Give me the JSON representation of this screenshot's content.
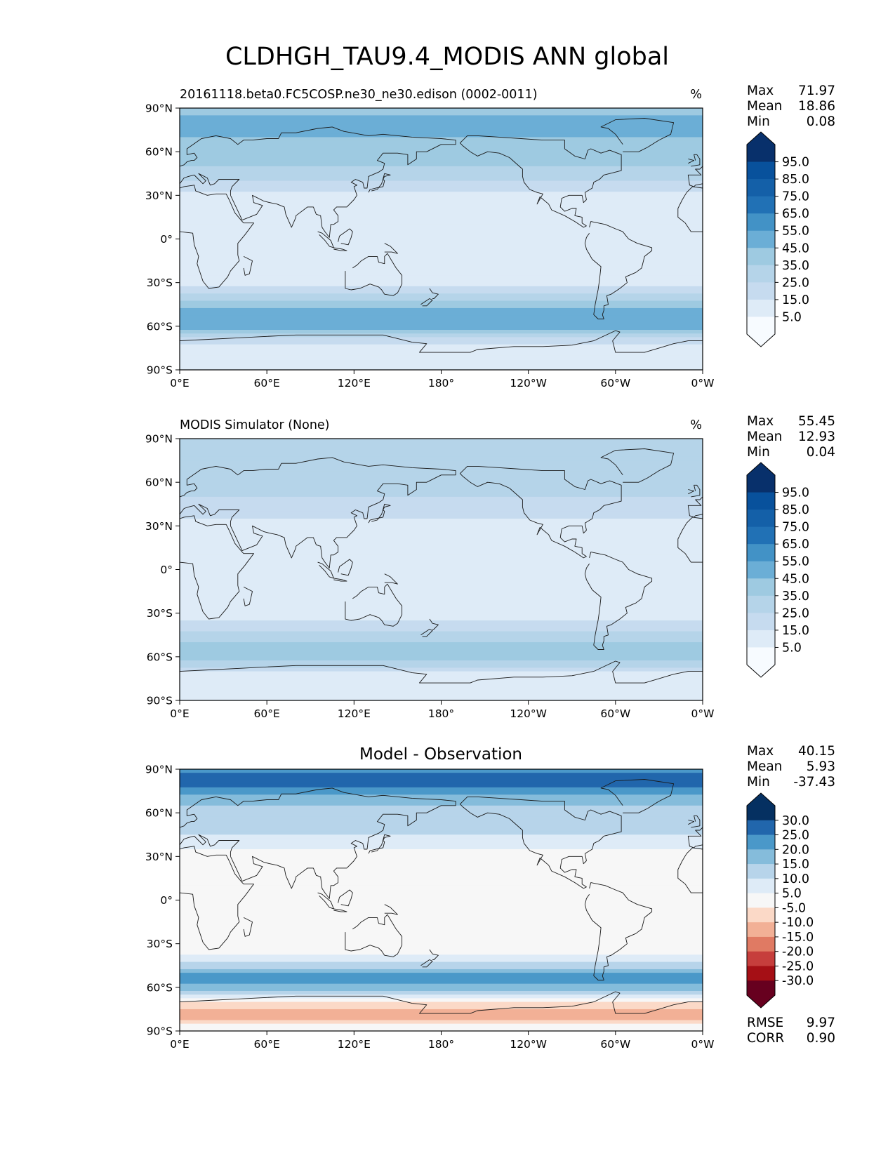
{
  "figure": {
    "title": "CLDHGH_TAU9.4_MODIS ANN global"
  },
  "palettes": {
    "blues": [
      "#f7fbff",
      "#deebf7",
      "#c6dbef",
      "#b5d4e9",
      "#9ecae1",
      "#6baed6",
      "#4292c6",
      "#2171b5",
      "#1460a8",
      "#08519c",
      "#08306b"
    ],
    "rdbu": [
      "#67001f",
      "#a50f15",
      "#c63e3c",
      "#e07a63",
      "#f2b096",
      "#fbd9c7",
      "#f7f7f7",
      "#deebf7",
      "#b7d4ea",
      "#85bcdb",
      "#4a98c9",
      "#2166ac",
      "#053061"
    ],
    "land": "#1a1a1a"
  },
  "chart_data": [
    {
      "type": "heatmap",
      "panel": "test",
      "left_title": "20161118.beta0.FC5COSP.ne30_ne30.edison (0002-0011)",
      "right_title": "%",
      "center_title": "",
      "stats": [
        {
          "label": "Max",
          "value": "71.97"
        },
        {
          "label": "Mean",
          "value": "18.86"
        },
        {
          "label": "Min",
          "value": "0.08"
        }
      ],
      "colorbar": {
        "ticks": [
          "95.0",
          "85.0",
          "75.0",
          "65.0",
          "55.0",
          "45.0",
          "35.0",
          "25.0",
          "15.0",
          "5.0"
        ],
        "extend": "both",
        "palette": "blues"
      },
      "x_ticks": [
        "0°E",
        "60°E",
        "120°E",
        "180°",
        "120°W",
        "60°W",
        "0°W"
      ],
      "y_ticks": [
        "90°N",
        "60°N",
        "30°N",
        "0°",
        "30°S",
        "60°S",
        "90°S"
      ],
      "xlim": [
        0,
        360
      ],
      "ylim": [
        -90,
        90
      ],
      "zonal_profile": {
        "lat": [
          -90,
          -80,
          -75,
          -70,
          -65,
          -60,
          -55,
          -50,
          -45,
          -40,
          -35,
          -30,
          -20,
          -10,
          0,
          10,
          20,
          30,
          40,
          50,
          60,
          70,
          75,
          80,
          90
        ],
        "value": [
          5,
          8,
          12,
          18,
          40,
          52,
          55,
          50,
          40,
          30,
          20,
          12,
          8,
          12,
          15,
          12,
          8,
          12,
          25,
          35,
          40,
          45,
          50,
          48,
          40
        ]
      }
    },
    {
      "type": "heatmap",
      "panel": "reference",
      "left_title": "MODIS Simulator (None)",
      "right_title": "%",
      "center_title": "",
      "stats": [
        {
          "label": "Max",
          "value": "55.45"
        },
        {
          "label": "Mean",
          "value": "12.93"
        },
        {
          "label": "Min",
          "value": "0.04"
        }
      ],
      "colorbar": {
        "ticks": [
          "95.0",
          "85.0",
          "75.0",
          "65.0",
          "55.0",
          "45.0",
          "35.0",
          "25.0",
          "15.0",
          "5.0"
        ],
        "extend": "both",
        "palette": "blues"
      },
      "x_ticks": [
        "0°E",
        "60°E",
        "120°E",
        "180°",
        "120°W",
        "60°W",
        "0°W"
      ],
      "y_ticks": [
        "90°N",
        "60°N",
        "30°N",
        "0°",
        "30°S",
        "60°S",
        "90°S"
      ],
      "xlim": [
        0,
        360
      ],
      "ylim": [
        -90,
        90
      ],
      "zonal_profile": {
        "lat": [
          -90,
          -80,
          -75,
          -70,
          -65,
          -60,
          -55,
          -50,
          -45,
          -40,
          -35,
          -30,
          -20,
          -10,
          0,
          10,
          20,
          30,
          40,
          50,
          60,
          70,
          75,
          80,
          90
        ],
        "value": [
          5,
          6,
          10,
          15,
          30,
          38,
          40,
          36,
          30,
          22,
          15,
          10,
          6,
          10,
          12,
          10,
          6,
          10,
          18,
          25,
          28,
          30,
          32,
          30,
          25
        ]
      }
    },
    {
      "type": "heatmap",
      "panel": "difference",
      "left_title": "",
      "right_title": "",
      "center_title": "Model - Observation",
      "stats": [
        {
          "label": "Max",
          "value": "40.15"
        },
        {
          "label": "Mean",
          "value": "5.93"
        },
        {
          "label": "Min",
          "value": "-37.43"
        }
      ],
      "extra_stats": [
        {
          "label": "RMSE",
          "value": "9.97"
        },
        {
          "label": "CORR",
          "value": "0.90"
        }
      ],
      "colorbar": {
        "ticks": [
          "30.0",
          "25.0",
          "20.0",
          "15.0",
          "10.0",
          "5.0",
          "-5.0",
          "-10.0",
          "-15.0",
          "-20.0",
          "-25.0",
          "-30.0"
        ],
        "extend": "both",
        "palette": "rdbu"
      },
      "x_ticks": [
        "0°E",
        "60°E",
        "120°E",
        "180°",
        "120°W",
        "60°W",
        "0°W"
      ],
      "y_ticks": [
        "90°N",
        "60°N",
        "30°N",
        "0°",
        "30°S",
        "60°S",
        "90°S"
      ],
      "xlim": [
        0,
        360
      ],
      "ylim": [
        -90,
        90
      ],
      "zonal_profile": {
        "lat": [
          -90,
          -80,
          -75,
          -70,
          -65,
          -60,
          -55,
          -50,
          -45,
          -40,
          -35,
          -30,
          -20,
          -10,
          0,
          10,
          20,
          30,
          40,
          50,
          60,
          70,
          75,
          80,
          85,
          90
        ],
        "value": [
          0,
          -12,
          -10,
          -4,
          10,
          18,
          22,
          20,
          12,
          6,
          2,
          0,
          0,
          0,
          0,
          0,
          0,
          2,
          8,
          12,
          14,
          16,
          22,
          26,
          30,
          18
        ]
      }
    }
  ]
}
